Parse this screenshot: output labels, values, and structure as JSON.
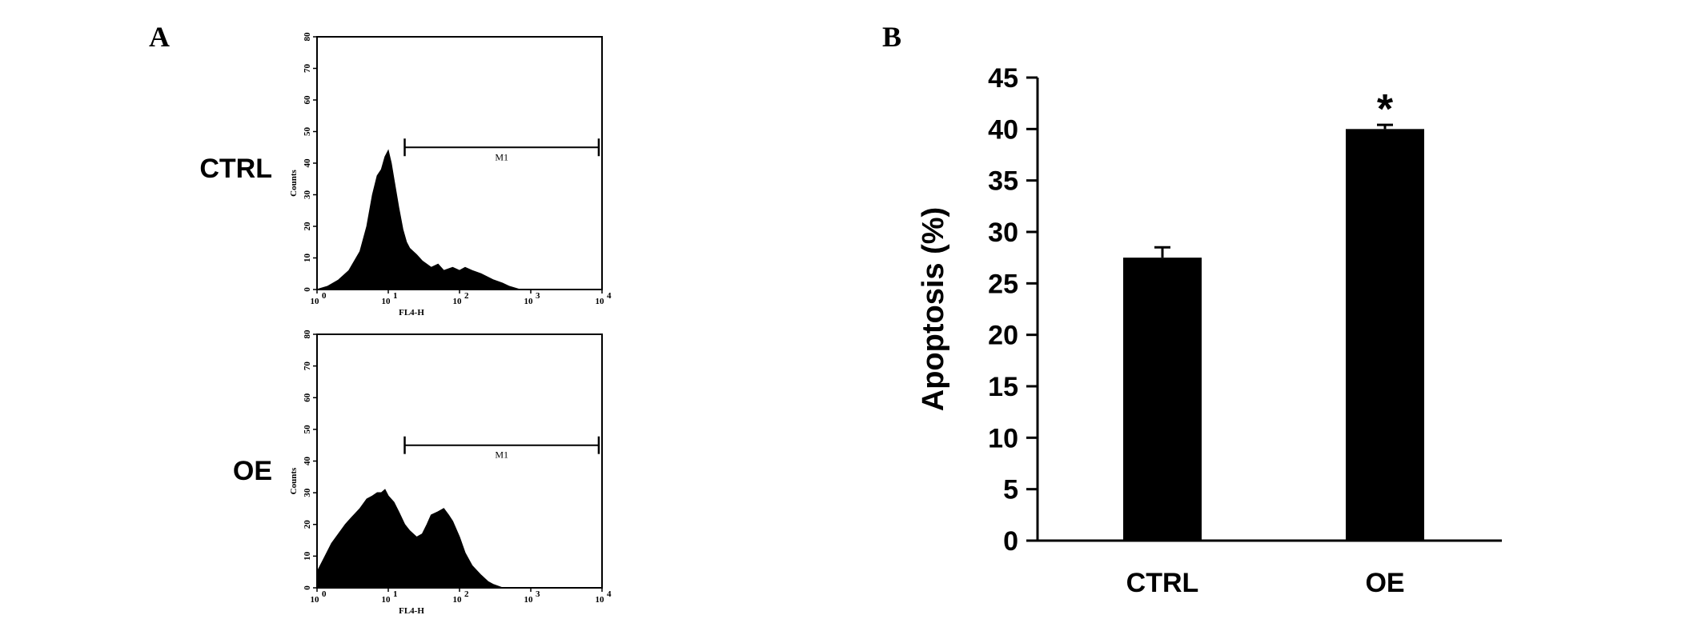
{
  "panels": {
    "a_label": "A",
    "b_label": "B"
  },
  "chart_data": [
    {
      "type": "area",
      "panel": "A",
      "row_label": "CTRL",
      "ylabel": "Counts",
      "xlabel": "FL4-H",
      "x_scale": "log",
      "xlim": [
        1,
        10000
      ],
      "ylim": [
        0,
        80
      ],
      "yticks": [
        "0",
        "10",
        "20",
        "30",
        "40",
        "50",
        "60",
        "70",
        "80"
      ],
      "xticks": [
        {
          "base": "10",
          "exp": "0"
        },
        {
          "base": "10",
          "exp": "1"
        },
        {
          "base": "10",
          "exp": "2"
        },
        {
          "base": "10",
          "exp": "3"
        },
        {
          "base": "10",
          "exp": "4"
        }
      ],
      "gate": {
        "label": "M1",
        "from": 17,
        "to": 9000,
        "y": 45
      },
      "x": [
        1,
        1.4,
        2,
        2.8,
        4,
        5,
        6,
        7,
        8,
        9,
        10,
        11,
        12,
        14,
        16,
        18,
        20,
        25,
        30,
        40,
        50,
        60,
        80,
        100,
        120,
        150,
        200,
        300,
        400,
        500,
        700,
        1000,
        10000
      ],
      "y": [
        0,
        1,
        3,
        6,
        12,
        20,
        30,
        36,
        38,
        42,
        44,
        40,
        35,
        26,
        19,
        15,
        13,
        11,
        9,
        7,
        8,
        6,
        7,
        6,
        7,
        6,
        5,
        3,
        2,
        1,
        0,
        0,
        0
      ]
    },
    {
      "type": "area",
      "panel": "A",
      "row_label": "OE",
      "ylabel": "Counts",
      "xlabel": "FL4-H",
      "x_scale": "log",
      "xlim": [
        1,
        10000
      ],
      "ylim": [
        0,
        80
      ],
      "yticks": [
        "0",
        "10",
        "20",
        "30",
        "40",
        "50",
        "60",
        "70",
        "80"
      ],
      "xticks": [
        {
          "base": "10",
          "exp": "0"
        },
        {
          "base": "10",
          "exp": "1"
        },
        {
          "base": "10",
          "exp": "2"
        },
        {
          "base": "10",
          "exp": "3"
        },
        {
          "base": "10",
          "exp": "4"
        }
      ],
      "gate": {
        "label": "M1",
        "from": 17,
        "to": 9000,
        "y": 45
      },
      "x": [
        1,
        1.3,
        1.6,
        2,
        2.5,
        3,
        4,
        5,
        6,
        7,
        8,
        9,
        10,
        12,
        14,
        17,
        20,
        25,
        30,
        35,
        40,
        50,
        60,
        70,
        80,
        100,
        120,
        150,
        200,
        250,
        300,
        400,
        500,
        10000
      ],
      "y": [
        5,
        10,
        14,
        17,
        20,
        22,
        25,
        28,
        29,
        30,
        30,
        31,
        29,
        27,
        24,
        20,
        18,
        16,
        17,
        20,
        23,
        24,
        25,
        23,
        21,
        16,
        11,
        7,
        4,
        2,
        1,
        0,
        0,
        0
      ]
    },
    {
      "type": "bar",
      "panel": "B",
      "categories": [
        "CTRL",
        "OE"
      ],
      "values": [
        27.5,
        40.0
      ],
      "errors": [
        1.0,
        0.4
      ],
      "significance": [
        "",
        "*"
      ],
      "ylabel": "Apoptosis (%)",
      "xlabel": "",
      "ylim": [
        0,
        45
      ],
      "yticks": [
        "0",
        "5",
        "10",
        "15",
        "20",
        "25",
        "30",
        "35",
        "40",
        "45"
      ],
      "colors": {
        "bar": "#000000"
      }
    }
  ]
}
